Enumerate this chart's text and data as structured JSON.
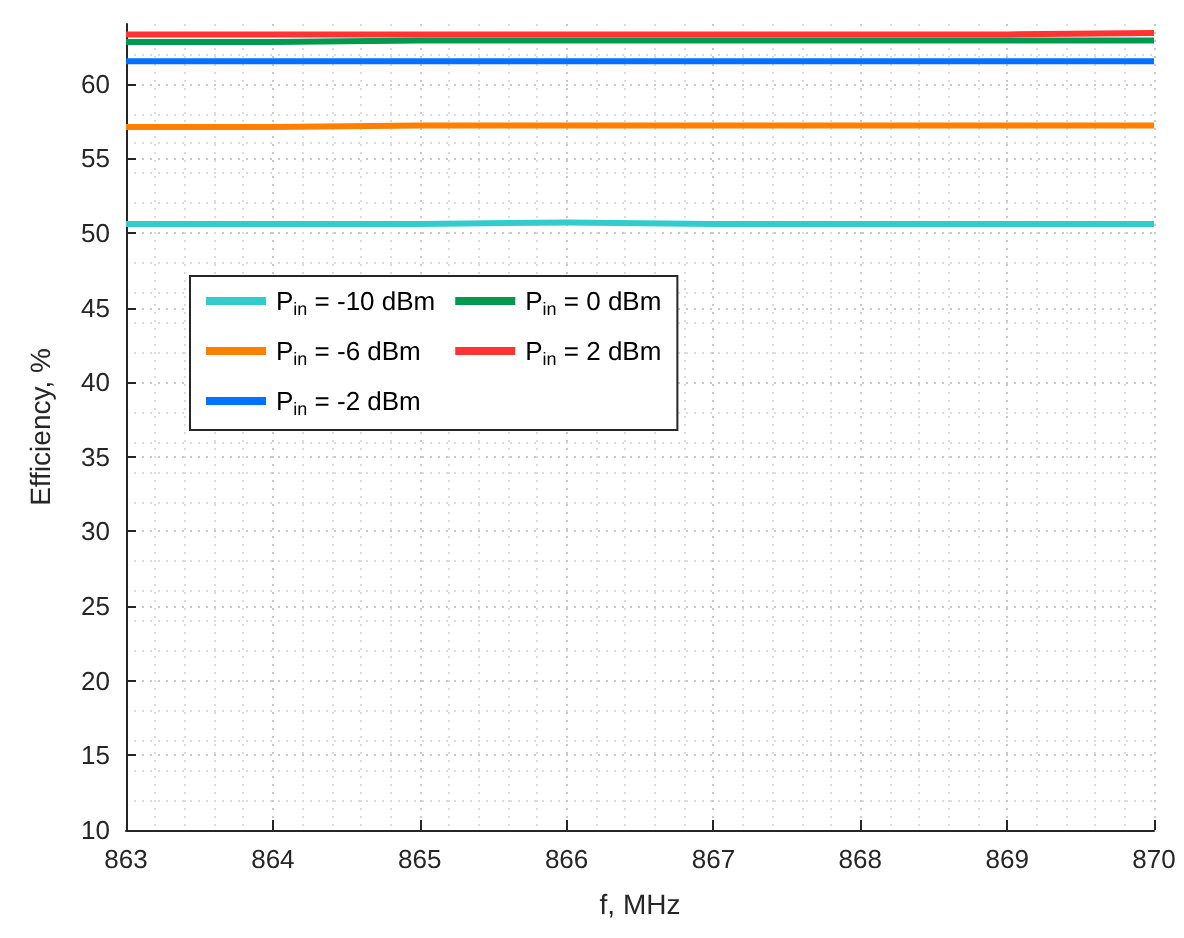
{
  "chart_data": {
    "type": "line",
    "xlabel": "f, MHz",
    "ylabel": "Efficiency, %",
    "x": [
      863,
      864,
      865,
      866,
      867,
      868,
      869,
      870
    ],
    "series": [
      {
        "name": "P$_{in}$ = -10 dBm",
        "color": "#33cccc",
        "values": [
          50.6,
          50.6,
          50.6,
          50.7,
          50.6,
          50.6,
          50.6,
          50.6
        ]
      },
      {
        "name": "P$_{in}$ = -6 dBm",
        "color": "#ff8000",
        "values": [
          57.1,
          57.1,
          57.2,
          57.2,
          57.2,
          57.2,
          57.2,
          57.2
        ]
      },
      {
        "name": "P$_{in}$ = -2 dBm",
        "color": "#0072ff",
        "values": [
          61.5,
          61.5,
          61.5,
          61.5,
          61.5,
          61.5,
          61.5,
          61.5
        ]
      },
      {
        "name": "P$_{in}$ = 0 dBm",
        "color": "#00994d",
        "values": [
          62.8,
          62.8,
          62.9,
          62.9,
          62.9,
          62.9,
          62.9,
          62.9
        ]
      },
      {
        "name": "P$_{in}$ = 2 dBm",
        "color": "#ff3333",
        "values": [
          63.3,
          63.3,
          63.3,
          63.3,
          63.3,
          63.3,
          63.3,
          63.4
        ]
      }
    ],
    "xlim": [
      863,
      870
    ],
    "xticks": [
      863,
      864,
      865,
      866,
      867,
      868,
      869,
      870
    ],
    "ylim": [
      10,
      64
    ],
    "yticks": [
      10,
      15,
      20,
      25,
      30,
      35,
      40,
      45,
      50,
      55,
      60
    ],
    "grid": true,
    "legend": "left",
    "marker": "none",
    "line_style": "solid"
  }
}
